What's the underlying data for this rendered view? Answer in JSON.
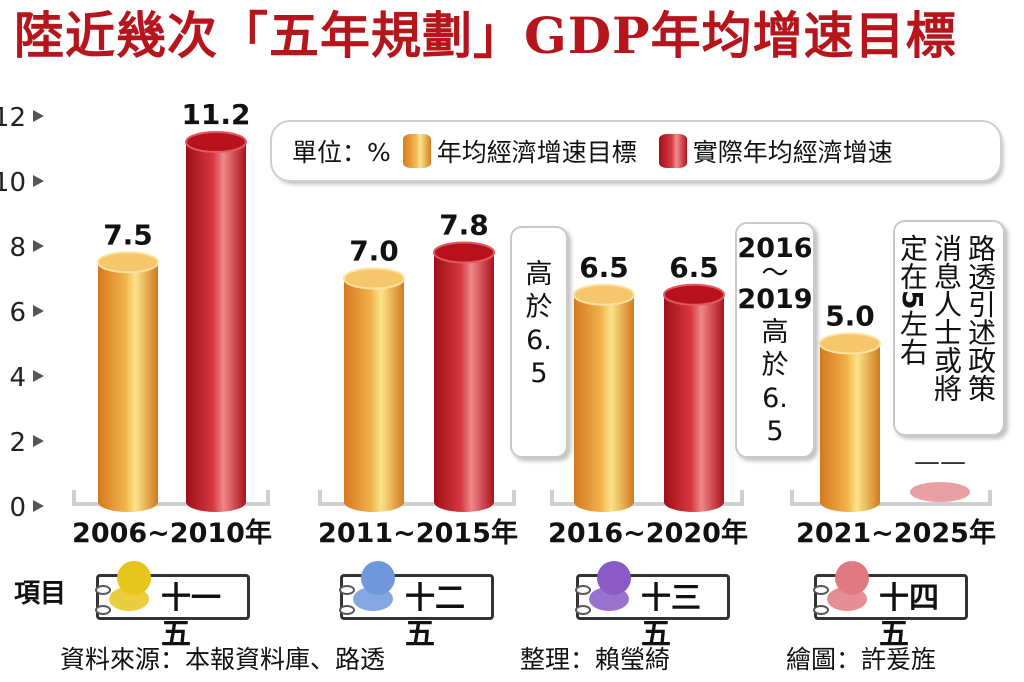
{
  "title": "陸近幾次「五年規劃」GDP年均增速目標",
  "legend": {
    "unit": "單位：%",
    "target_label": "年均經濟增速目標",
    "actual_label": "實際年均經濟增速"
  },
  "chart_data": {
    "type": "bar",
    "categories": [
      "2006~2010年",
      "2011~2015年",
      "2016~2020年",
      "2021~2025年"
    ],
    "series": [
      {
        "name": "年均經濟增速目標",
        "values": [
          7.5,
          7.0,
          6.5,
          5.0
        ],
        "color": "#eb9d36"
      },
      {
        "name": "實際年均經濟增速",
        "values": [
          11.2,
          7.8,
          6.5,
          null
        ],
        "color": "#cc2631"
      }
    ],
    "value_labels": [
      [
        "7.5",
        "7.0",
        "6.5",
        "5.0"
      ],
      [
        "11.2",
        "7.8",
        "6.5",
        "——"
      ]
    ],
    "ylim": [
      0,
      12
    ],
    "yticks": [
      "0",
      "2",
      "4",
      "6",
      "8",
      "10",
      "12"
    ],
    "grid": false
  },
  "notes": {
    "n1": "高於6.5",
    "n2_a": "2016",
    "n2_tilde": "～",
    "n2_b": "2019",
    "n2_v": "高於6.5",
    "n3_a": "路透引述政策",
    "n3_b": "消息人士或將",
    "n3_c": "定在",
    "n3_num": "5",
    "n3_d": "左右"
  },
  "projects": {
    "label": "項目",
    "items": [
      {
        "name": "十一五",
        "color": "#e6c61c"
      },
      {
        "name": "十二五",
        "color": "#6f97dc"
      },
      {
        "name": "十三五",
        "color": "#8a5bc6"
      },
      {
        "name": "十四五",
        "color": "#e07a80"
      }
    ]
  },
  "footer": {
    "source": "資料來源：本報資料庫、路透",
    "editor": "整理：賴瑩綺",
    "artist": "繪圖：許爰旌"
  }
}
